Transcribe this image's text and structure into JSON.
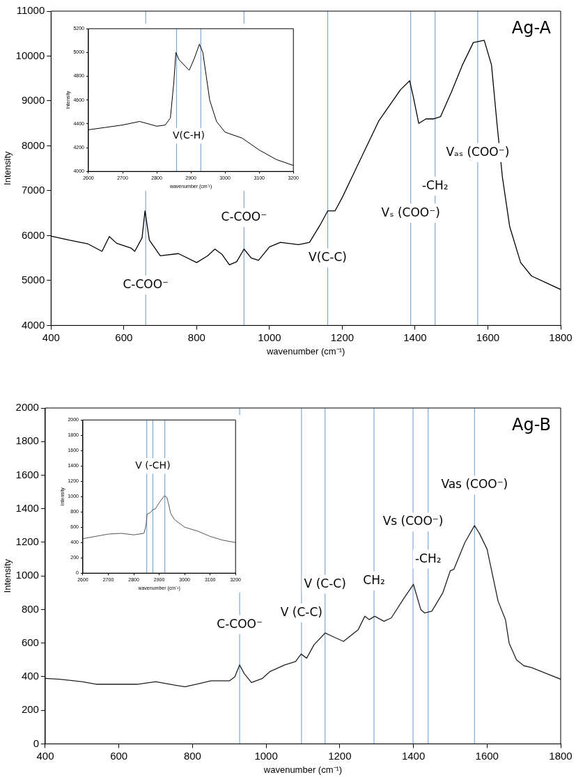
{
  "chart_data": [
    {
      "type": "line",
      "title": "Ag-A",
      "xlabel": "wavenumber (cm⁻¹)",
      "ylabel": "Intensity",
      "xlim": [
        400,
        1800
      ],
      "xticks": [
        400,
        600,
        800,
        1000,
        1200,
        1400,
        1600,
        1800
      ],
      "ylim": [
        4000,
        11000
      ],
      "yticks": [
        4000,
        5000,
        6000,
        7000,
        8000,
        9000,
        10000,
        11000
      ],
      "marker": "none",
      "legend": false,
      "series": [
        {
          "color": "#000000",
          "x": [
            400,
            450,
            500,
            540,
            560,
            580,
            620,
            630,
            650,
            658,
            670,
            700,
            750,
            800,
            830,
            850,
            870,
            890,
            910,
            930,
            950,
            970,
            1000,
            1030,
            1080,
            1110,
            1140,
            1160,
            1180,
            1200,
            1250,
            1300,
            1330,
            1360,
            1385,
            1395,
            1410,
            1430,
            1450,
            1470,
            1500,
            1530,
            1560,
            1590,
            1610,
            1625,
            1640,
            1660,
            1690,
            1720,
            1760,
            1800
          ],
          "values": [
            5990,
            5900,
            5820,
            5650,
            5980,
            5830,
            5720,
            5650,
            5950,
            6550,
            5900,
            5550,
            5600,
            5400,
            5550,
            5700,
            5580,
            5350,
            5420,
            5700,
            5500,
            5450,
            5750,
            5850,
            5800,
            5850,
            6250,
            6550,
            6550,
            6850,
            7700,
            8550,
            8900,
            9250,
            9450,
            9100,
            8500,
            8600,
            8600,
            8650,
            9200,
            9800,
            10300,
            10350,
            9800,
            8500,
            7300,
            6200,
            5400,
            5100,
            4950,
            4800
          ]
        }
      ],
      "ref_lines": [
        {
          "axis": "x",
          "value": 660,
          "color": "#7fa8d8"
        },
        {
          "axis": "x",
          "value": 930,
          "color": "#7fa8d8"
        },
        {
          "axis": "x",
          "value": 1160,
          "color": "#7fa8d8"
        },
        {
          "axis": "x",
          "value": 1388,
          "color": "#7fa8d8"
        },
        {
          "axis": "x",
          "value": 1455,
          "color": "#7fa8d8"
        },
        {
          "axis": "x",
          "value": 1572,
          "color": "#7fa8d8"
        }
      ],
      "annotations": [
        {
          "text": "C-COO⁻",
          "x": 660,
          "y": 4900
        },
        {
          "text": "C-COO⁻",
          "x": 930,
          "y": 6400
        },
        {
          "text": "V(C-C)",
          "x": 1160,
          "y": 5500
        },
        {
          "text": "Vₛ (COO⁻)",
          "x": 1388,
          "y": 6500
        },
        {
          "text": "-CH₂",
          "x": 1455,
          "y": 7100
        },
        {
          "text": "Vₐₛ (COO⁻)",
          "x": 1572,
          "y": 7850
        }
      ]
    },
    {
      "type": "line",
      "xlabel": "wavenumber (cm⁻¹)",
      "ylabel": "Intensity",
      "xlim": [
        2600,
        3200
      ],
      "xticks": [
        2600,
        2700,
        2800,
        2900,
        3000,
        3100,
        3200
      ],
      "ylim": [
        4000,
        5200
      ],
      "yticks": [
        4000,
        4200,
        4400,
        4600,
        4800,
        5000,
        5200
      ],
      "marker": "none",
      "legend": false,
      "series": [
        {
          "color": "#000000",
          "x": [
            2600,
            2650,
            2700,
            2750,
            2800,
            2825,
            2840,
            2850,
            2856,
            2865,
            2885,
            2895,
            2910,
            2925,
            2935,
            2945,
            2955,
            2975,
            3000,
            3050,
            3100,
            3150,
            3200
          ],
          "values": [
            4350,
            4370,
            4390,
            4420,
            4380,
            4390,
            4450,
            4750,
            5000,
            4940,
            4880,
            4850,
            4950,
            5070,
            5000,
            4800,
            4600,
            4420,
            4330,
            4280,
            4180,
            4100,
            4050
          ]
        }
      ],
      "ref_lines": [
        {
          "axis": "x",
          "value": 2858,
          "color": "#7fa8d8"
        },
        {
          "axis": "x",
          "value": 2929,
          "color": "#7fa8d8"
        }
      ],
      "annotations": [
        "V(C-H)"
      ]
    },
    {
      "type": "line",
      "title": "Ag-B",
      "xlabel": "wavenumber (cm⁻¹)",
      "ylabel": "Intensity",
      "xlim": [
        400,
        1800
      ],
      "xticks": [
        400,
        600,
        800,
        1000,
        1200,
        1400,
        1600,
        1800
      ],
      "ylim": [
        0,
        2000
      ],
      "yticks": [
        0,
        200,
        400,
        600,
        800,
        1000,
        1200,
        1400,
        1600,
        1800,
        2000
      ],
      "marker": "none",
      "legend": false,
      "series": [
        {
          "color": "#222222",
          "x": [
            400,
            440,
            500,
            540,
            600,
            650,
            700,
            750,
            780,
            820,
            850,
            900,
            915,
            928,
            940,
            960,
            990,
            1010,
            1050,
            1080,
            1095,
            1110,
            1130,
            1160,
            1180,
            1210,
            1250,
            1268,
            1280,
            1295,
            1320,
            1340,
            1375,
            1400,
            1420,
            1430,
            1450,
            1480,
            1500,
            1510,
            1540,
            1566,
            1580,
            1600,
            1630,
            1650,
            1660,
            1680,
            1700,
            1720,
            1760,
            1800
          ],
          "values": [
            390,
            385,
            370,
            355,
            355,
            355,
            370,
            350,
            340,
            360,
            375,
            375,
            400,
            470,
            420,
            365,
            390,
            430,
            470,
            490,
            535,
            510,
            590,
            660,
            640,
            610,
            680,
            760,
            740,
            760,
            730,
            750,
            870,
            950,
            800,
            780,
            790,
            900,
            1030,
            1040,
            1200,
            1300,
            1250,
            1160,
            850,
            740,
            600,
            500,
            465,
            455,
            420,
            385
          ]
        }
      ],
      "ref_lines": [
        {
          "axis": "x",
          "value": 928,
          "color": "#7fa8d8"
        },
        {
          "axis": "x",
          "value": 1096,
          "color": "#7fa8d8"
        },
        {
          "axis": "x",
          "value": 1160,
          "color": "#7fa8d8"
        },
        {
          "axis": "x",
          "value": 1293,
          "color": "#7fa8d8"
        },
        {
          "axis": "x",
          "value": 1399,
          "color": "#7fa8d8"
        },
        {
          "axis": "x",
          "value": 1440,
          "color": "#7fa8d8"
        },
        {
          "axis": "x",
          "value": 1566,
          "color": "#7fa8d8"
        }
      ],
      "annotations": [
        {
          "text": "C-COO⁻",
          "x": 928,
          "y": 710
        },
        {
          "text": "V (C-C)",
          "x": 1096,
          "y": 780
        },
        {
          "text": "V (C-C)",
          "x": 1160,
          "y": 950
        },
        {
          "text": "CH₂",
          "x": 1293,
          "y": 970
        },
        {
          "text": "Vs (COO⁻)",
          "x": 1399,
          "y": 1320
        },
        {
          "text": "-CH₂",
          "x": 1440,
          "y": 1100
        },
        {
          "text": "Vas (COO⁻)",
          "x": 1566,
          "y": 1540
        }
      ]
    },
    {
      "type": "line",
      "xlabel": "wavenumber (cm⁻¹)",
      "ylabel": "Intensity",
      "xlim": [
        2600,
        3200
      ],
      "xticks": [
        2600,
        2700,
        2800,
        2900,
        3000,
        3100,
        3200
      ],
      "ylim": [
        0,
        2000
      ],
      "yticks": [
        0,
        200,
        400,
        600,
        800,
        1000,
        1200,
        1400,
        1600,
        1800,
        2000
      ],
      "marker": "none",
      "legend": false,
      "series": [
        {
          "color": "#555555",
          "x": [
            2600,
            2650,
            2700,
            2750,
            2800,
            2840,
            2848,
            2852,
            2865,
            2875,
            2885,
            2900,
            2920,
            2930,
            2937,
            2945,
            2960,
            3000,
            3050,
            3100,
            3150,
            3200
          ],
          "values": [
            450,
            480,
            510,
            520,
            500,
            520,
            620,
            770,
            790,
            830,
            840,
            920,
            1010,
            990,
            900,
            780,
            700,
            600,
            550,
            480,
            430,
            400
          ]
        }
      ],
      "ref_lines": [
        {
          "axis": "x",
          "value": 2851,
          "color": "#7fa8d8"
        },
        {
          "axis": "x",
          "value": 2875,
          "color": "#7fa8d8"
        },
        {
          "axis": "x",
          "value": 2922,
          "color": "#7fa8d8"
        }
      ],
      "annotations": [
        {
          "text": "V (-CH)",
          "x": 2875,
          "y": 1400
        }
      ]
    }
  ]
}
